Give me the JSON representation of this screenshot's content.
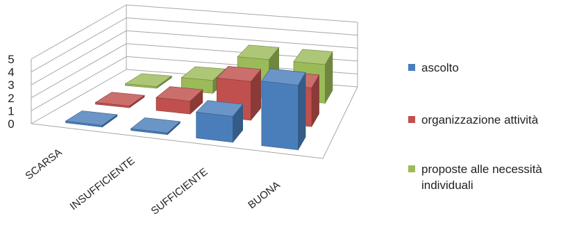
{
  "chart_data": {
    "type": "bar",
    "subtype": "3d-clustered-column",
    "title": "",
    "xlabel": "",
    "ylabel": "",
    "ylim": [
      0,
      5
    ],
    "yticks": [
      "0",
      "1",
      "2",
      "3",
      "4",
      "5"
    ],
    "categories": [
      "SCARSA",
      "INSUFFICIENTE",
      "SUFFICIENTE",
      "BUONA"
    ],
    "series": [
      {
        "name": "ascolto",
        "color": "#4a7ebb",
        "values": [
          0,
          0,
          2,
          5
        ]
      },
      {
        "name": "organizzazione attività",
        "color": "#c0504d",
        "values": [
          0,
          1,
          3,
          3
        ]
      },
      {
        "name": "proposte alle necessità individuali",
        "color": "#9bbb59",
        "values": [
          0,
          1,
          3,
          3
        ]
      }
    ],
    "grid": true,
    "legend": "right"
  }
}
